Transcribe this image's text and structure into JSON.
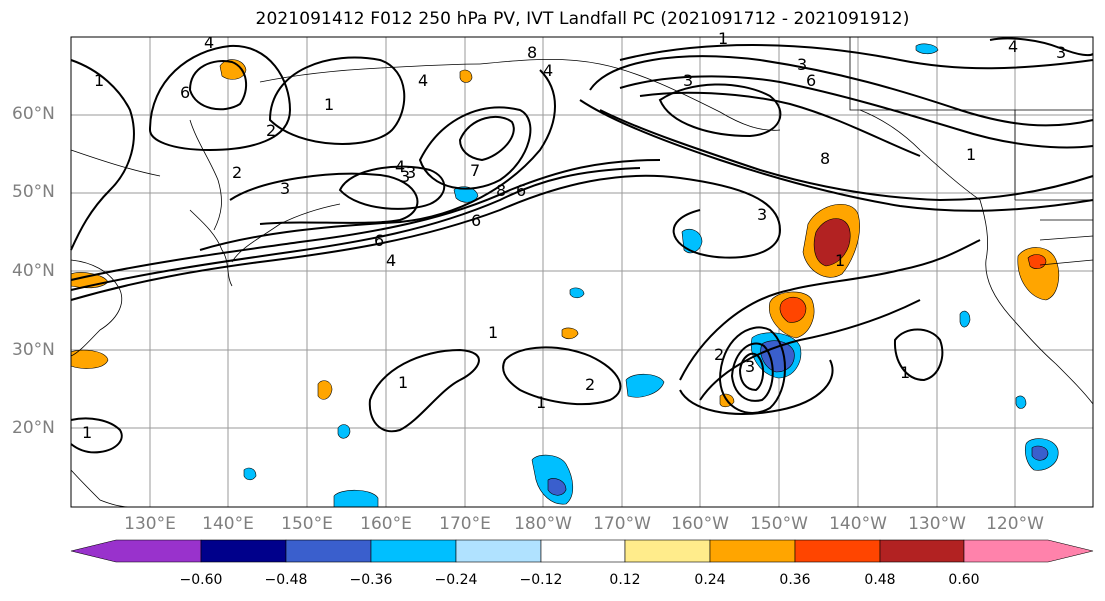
{
  "title": "2021091412 F012 250 hPa PV, IVT Landfall PC (2021091712 - 2021091912)",
  "map": {
    "lat_labels": [
      "60°N",
      "50°N",
      "40°N",
      "30°N",
      "20°N"
    ],
    "lon_labels": [
      "130°E",
      "140°E",
      "150°E",
      "160°E",
      "170°E",
      "180°W",
      "170°W",
      "160°W",
      "150°W",
      "140°W",
      "130°W",
      "120°W"
    ],
    "contour_labels": [
      "4",
      "6",
      "1",
      "2",
      "3",
      "8",
      "1",
      "3",
      "6",
      "8",
      "4",
      "3",
      "1",
      "4",
      "3",
      "2",
      "4",
      "6",
      "8",
      "6",
      "3",
      "7",
      "4",
      "6",
      "3",
      "1",
      "1",
      "2",
      "1",
      "1",
      "3",
      "2",
      "1",
      "1",
      "1",
      "4",
      "3"
    ]
  },
  "colorbar": {
    "ticks": [
      "−0.60",
      "−0.48",
      "−0.36",
      "−0.24",
      "−0.12",
      "0.12",
      "0.24",
      "0.36",
      "0.48",
      "0.60"
    ],
    "colors": [
      "#9932cc",
      "#00008b",
      "#3a5fcd",
      "#00bfff",
      "#b0e2ff",
      "#ffffff",
      "#ffec8b",
      "#ffa500",
      "#ff4500",
      "#b22222",
      "#ff82ab"
    ]
  }
}
